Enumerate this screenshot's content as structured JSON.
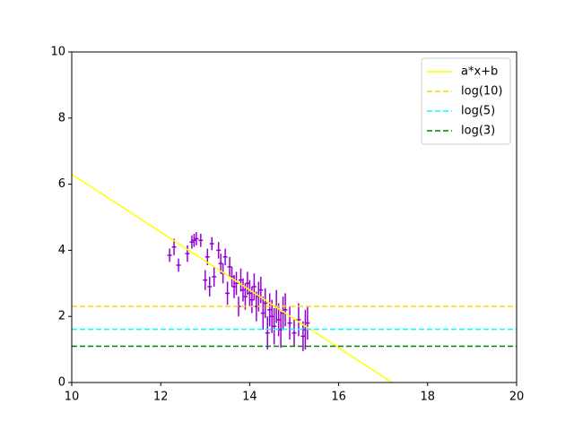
{
  "chart_data": {
    "type": "errorbar",
    "color": "#9400d3",
    "x": [
      12.2,
      12.3,
      12.4,
      12.6,
      12.7,
      12.75,
      12.8,
      12.9,
      13.0,
      13.05,
      13.1,
      13.15,
      13.2,
      13.3,
      13.35,
      13.4,
      13.45,
      13.5,
      13.55,
      13.6,
      13.65,
      13.7,
      13.75,
      13.8,
      13.85,
      13.9,
      13.95,
      14.0,
      14.05,
      14.1,
      14.15,
      14.2,
      14.25,
      14.3,
      14.35,
      14.4,
      14.45,
      14.5,
      14.55,
      14.6,
      14.65,
      14.7,
      14.75,
      14.8,
      14.9,
      15.0,
      15.1,
      15.2,
      15.25,
      15.3
    ],
    "values": [
      3.85,
      4.1,
      3.55,
      3.9,
      4.25,
      4.3,
      4.35,
      4.3,
      3.1,
      3.8,
      2.9,
      4.2,
      3.2,
      4.0,
      3.6,
      3.3,
      3.8,
      2.7,
      3.5,
      3.2,
      2.9,
      3.0,
      2.3,
      3.1,
      2.8,
      2.6,
      3.0,
      2.7,
      2.5,
      2.9,
      2.3,
      2.6,
      2.8,
      2.1,
      2.4,
      1.5,
      2.2,
      2.0,
      1.7,
      2.3,
      1.9,
      1.6,
      2.1,
      2.2,
      1.8,
      1.5,
      1.9,
      1.4,
      1.6,
      1.8
    ],
    "yerr": [
      0.2,
      0.25,
      0.2,
      0.25,
      0.2,
      0.2,
      0.2,
      0.2,
      0.3,
      0.25,
      0.3,
      0.2,
      0.3,
      0.25,
      0.3,
      0.3,
      0.25,
      0.35,
      0.3,
      0.3,
      0.35,
      0.35,
      0.3,
      0.35,
      0.35,
      0.4,
      0.35,
      0.4,
      0.4,
      0.4,
      0.45,
      0.45,
      0.4,
      0.5,
      0.45,
      0.5,
      0.5,
      0.5,
      0.55,
      0.5,
      0.5,
      0.55,
      0.5,
      0.5,
      0.5,
      0.4,
      0.5,
      0.45,
      0.6,
      0.5
    ],
    "xerr": 0.05,
    "lines": [
      {
        "name": "a*x+b",
        "color": "#ffff00",
        "dash": false,
        "x": [
          10,
          17.2
        ],
        "values": [
          6.3,
          0
        ]
      }
    ],
    "hlines": [
      {
        "name": "log(10)",
        "color": "#ffd700",
        "dash": true,
        "y": 2.303
      },
      {
        "name": "log(5)",
        "color": "#00ffff",
        "dash": true,
        "y": 1.609
      },
      {
        "name": "log(3)",
        "color": "#008000",
        "dash": true,
        "y": 1.099
      }
    ],
    "xlim": [
      10,
      20
    ],
    "ylim": [
      0,
      10
    ],
    "xticks": [
      10,
      12,
      14,
      16,
      18,
      20
    ],
    "yticks": [
      0,
      2,
      4,
      6,
      8,
      10
    ],
    "legend": "upper right"
  }
}
